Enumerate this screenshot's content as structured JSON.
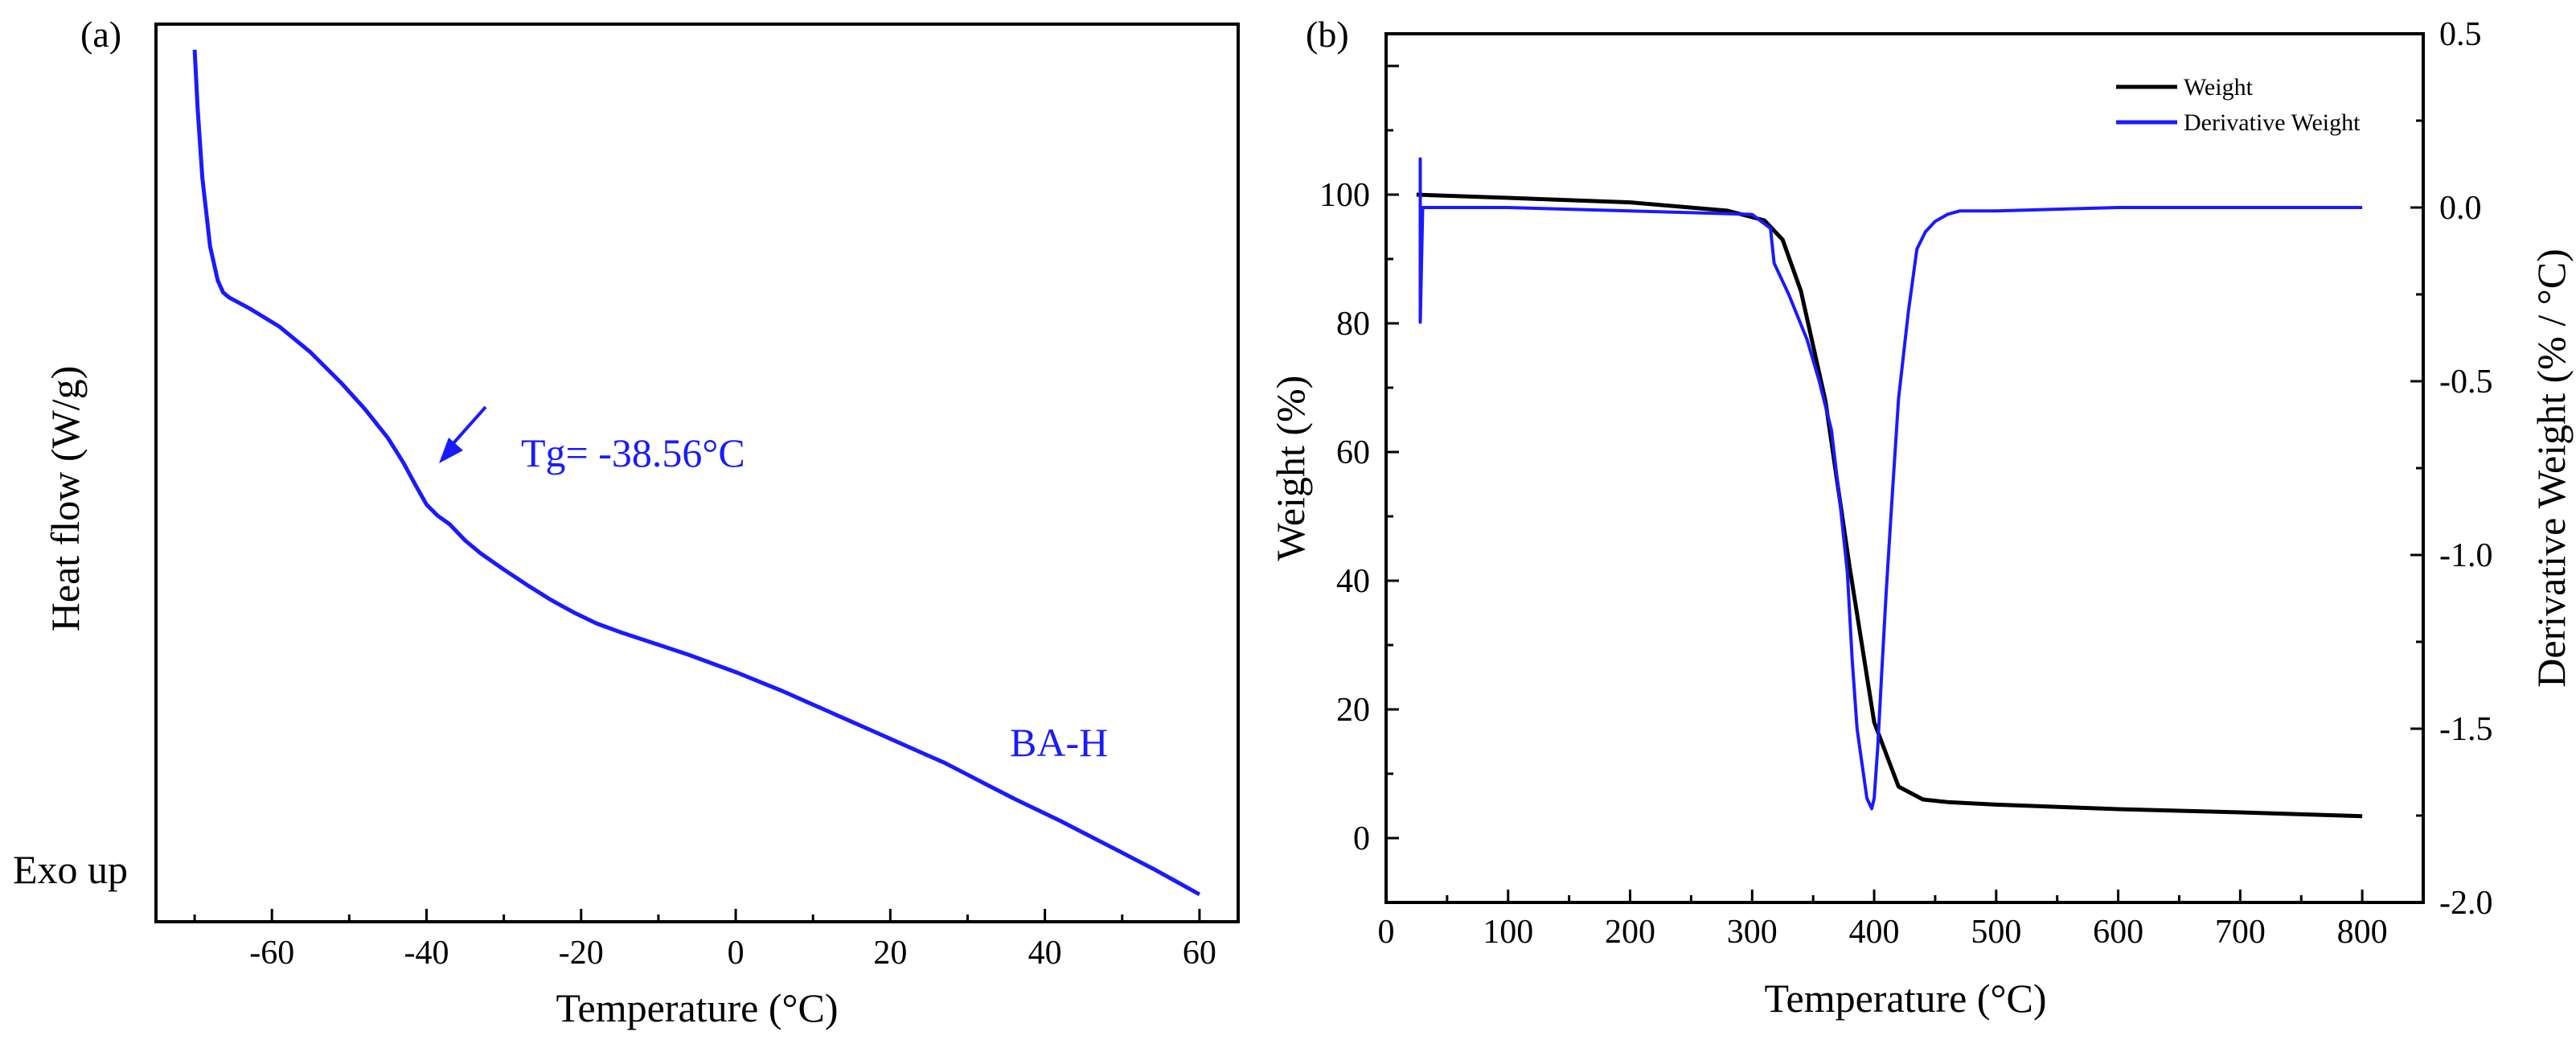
{
  "chart_data": [
    {
      "panel": "(a)",
      "type": "line",
      "xlabel": "Temperature (°C)",
      "ylabel": "Heat flow (W/g)",
      "exo_label": "Exo up",
      "xlim": [
        -75,
        65
      ],
      "xticks": [
        -60,
        -40,
        -20,
        0,
        20,
        40,
        60
      ],
      "tick_labels": [
        "-60",
        "-40",
        "-20",
        "0",
        "20",
        "40",
        "60"
      ],
      "series": [
        {
          "name": "BA-H",
          "color": "#1a1aff",
          "x": [
            -70,
            -69.6,
            -69,
            -68,
            -67,
            -66.3,
            -65.5,
            -63,
            -59,
            -55,
            -51,
            -48,
            -45,
            -43,
            -41.5,
            -40,
            -38.56,
            -37,
            -35,
            -33,
            -30,
            -27,
            -24,
            -21,
            -18,
            -15,
            -12,
            -9,
            -6,
            -3,
            0,
            3,
            6,
            9,
            12,
            15,
            18,
            21,
            24,
            27,
            30,
            33,
            36,
            39,
            42,
            45,
            48,
            51,
            54,
            57,
            60
          ],
          "y": [
            97,
            90,
            82,
            74,
            70,
            68.6,
            68,
            66.8,
            64.6,
            61.6,
            58,
            55,
            51.6,
            48.7,
            46.2,
            43.8,
            42.5,
            41.5,
            39.6,
            38.1,
            36.2,
            34.4,
            32.7,
            31.2,
            29.9,
            28.9,
            28.0,
            27.1,
            26.2,
            25.2,
            24.2,
            23.1,
            22.0,
            20.8,
            19.6,
            18.4,
            17.2,
            16.0,
            14.8,
            13.6,
            12.2,
            10.8,
            9.4,
            8.1,
            6.8,
            5.4,
            4.0,
            2.6,
            1.2,
            -0.3,
            -1.8
          ]
        }
      ],
      "annotations": [
        {
          "text": "Tg= -38.56°C",
          "x": -38.56,
          "y": 42.5
        },
        {
          "text": "BA-H"
        }
      ]
    },
    {
      "panel": "(b)",
      "type": "line",
      "xlabel": "Temperature (°C)",
      "ylabel": "Weight (%)",
      "ylabel_right": "Derivative Weight (% / °C)",
      "xlim": [
        0,
        850
      ],
      "ylim": [
        -10,
        125
      ],
      "ylim_right": [
        -2.0,
        0.5
      ],
      "xticks": [
        "0",
        "100",
        "200",
        "300",
        "400",
        "500",
        "600",
        "700",
        "800"
      ],
      "yticks": [
        "0",
        "20",
        "40",
        "60",
        "80",
        "100"
      ],
      "yticks_right": [
        "-2.0",
        "-1.5",
        "-1.0",
        "-0.5",
        "0.0",
        "0.5"
      ],
      "series": [
        {
          "name": "Weight",
          "color": "#000000",
          "axis": "left",
          "x": [
            25,
            100,
            200,
            280,
            310,
            325,
            340,
            360,
            380,
            400,
            420,
            440,
            460,
            500,
            600,
            700,
            800
          ],
          "y": [
            100,
            99.5,
            98.8,
            97.5,
            96,
            93,
            85,
            68,
            42,
            18,
            8,
            6,
            5.6,
            5.2,
            4.5,
            4,
            3.4
          ]
        },
        {
          "name": "Derivative Weight",
          "color": "#1a1aff",
          "axis": "right",
          "x": [
            28,
            28,
            28,
            30,
            100,
            200,
            300,
            315,
            318,
            330,
            345,
            355,
            365,
            372,
            378,
            382,
            386,
            390,
            394,
            398,
            400,
            403,
            406,
            410,
            415,
            420,
            428,
            435,
            442,
            450,
            460,
            470,
            500,
            600,
            700,
            800
          ],
          "y": [
            0.02,
            0.14,
            -0.33,
            0.0,
            0.0,
            -0.01,
            -0.02,
            -0.06,
            -0.16,
            -0.25,
            -0.38,
            -0.5,
            -0.64,
            -0.85,
            -1.05,
            -1.3,
            -1.5,
            -1.6,
            -1.7,
            -1.73,
            -1.7,
            -1.55,
            -1.35,
            -1.1,
            -0.82,
            -0.55,
            -0.3,
            -0.12,
            -0.07,
            -0.04,
            -0.02,
            -0.01,
            -0.01,
            0.0,
            0.0,
            0.0
          ]
        }
      ],
      "legend": {
        "placement": "top-right",
        "entries": [
          "Weight",
          "Derivative Weight"
        ]
      }
    }
  ]
}
